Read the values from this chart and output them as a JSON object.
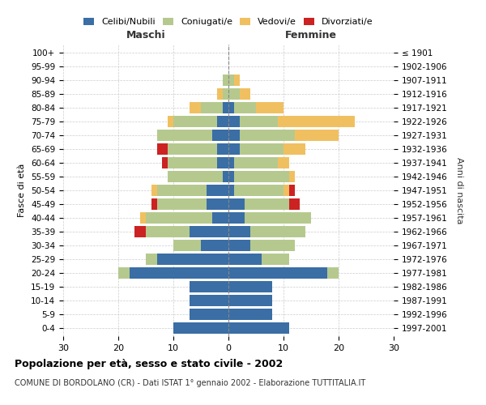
{
  "age_groups": [
    "0-4",
    "5-9",
    "10-14",
    "15-19",
    "20-24",
    "25-29",
    "30-34",
    "35-39",
    "40-44",
    "45-49",
    "50-54",
    "55-59",
    "60-64",
    "65-69",
    "70-74",
    "75-79",
    "80-84",
    "85-89",
    "90-94",
    "95-99",
    "100+"
  ],
  "birth_years": [
    "1997-2001",
    "1992-1996",
    "1987-1991",
    "1982-1986",
    "1977-1981",
    "1972-1976",
    "1967-1971",
    "1962-1966",
    "1957-1961",
    "1952-1956",
    "1947-1951",
    "1942-1946",
    "1937-1941",
    "1932-1936",
    "1927-1931",
    "1922-1926",
    "1917-1921",
    "1912-1916",
    "1907-1911",
    "1902-1906",
    "≤ 1901"
  ],
  "maschi": {
    "celibi": [
      10,
      7,
      7,
      7,
      18,
      13,
      5,
      7,
      3,
      4,
      4,
      1,
      2,
      2,
      3,
      2,
      1,
      0,
      0,
      0,
      0
    ],
    "coniugati": [
      0,
      0,
      0,
      0,
      2,
      2,
      5,
      8,
      12,
      9,
      9,
      10,
      9,
      9,
      10,
      8,
      4,
      1,
      1,
      0,
      0
    ],
    "vedovi": [
      0,
      0,
      0,
      0,
      0,
      0,
      0,
      0,
      1,
      0,
      1,
      0,
      0,
      0,
      0,
      1,
      2,
      1,
      0,
      0,
      0
    ],
    "divorziati": [
      0,
      0,
      0,
      0,
      0,
      0,
      0,
      2,
      0,
      1,
      0,
      0,
      1,
      2,
      0,
      0,
      0,
      0,
      0,
      0,
      0
    ]
  },
  "femmine": {
    "nubili": [
      11,
      8,
      8,
      8,
      18,
      6,
      4,
      4,
      3,
      3,
      1,
      1,
      1,
      2,
      2,
      2,
      1,
      0,
      0,
      0,
      0
    ],
    "coniugate": [
      0,
      0,
      0,
      0,
      2,
      5,
      8,
      10,
      12,
      8,
      9,
      10,
      8,
      8,
      10,
      7,
      4,
      2,
      1,
      0,
      0
    ],
    "vedove": [
      0,
      0,
      0,
      0,
      0,
      0,
      0,
      0,
      0,
      0,
      1,
      1,
      2,
      4,
      8,
      14,
      5,
      2,
      1,
      0,
      0
    ],
    "divorziate": [
      0,
      0,
      0,
      0,
      0,
      0,
      0,
      0,
      0,
      2,
      1,
      0,
      0,
      0,
      0,
      0,
      0,
      0,
      0,
      0,
      0
    ]
  },
  "colors": {
    "celibi": "#3a6ea5",
    "coniugati": "#b5c98e",
    "vedovi": "#f0c060",
    "divorziati": "#cc2222"
  },
  "xlim": 30,
  "title": "Popolazione per età, sesso e stato civile - 2002",
  "subtitle": "COMUNE DI BORDOLANO (CR) - Dati ISTAT 1° gennaio 2002 - Elaborazione TUTTITALIA.IT",
  "ylabel_left": "Fasce di età",
  "ylabel_right": "Anni di nascita",
  "xlabel_left": "Maschi",
  "xlabel_right": "Femmine"
}
